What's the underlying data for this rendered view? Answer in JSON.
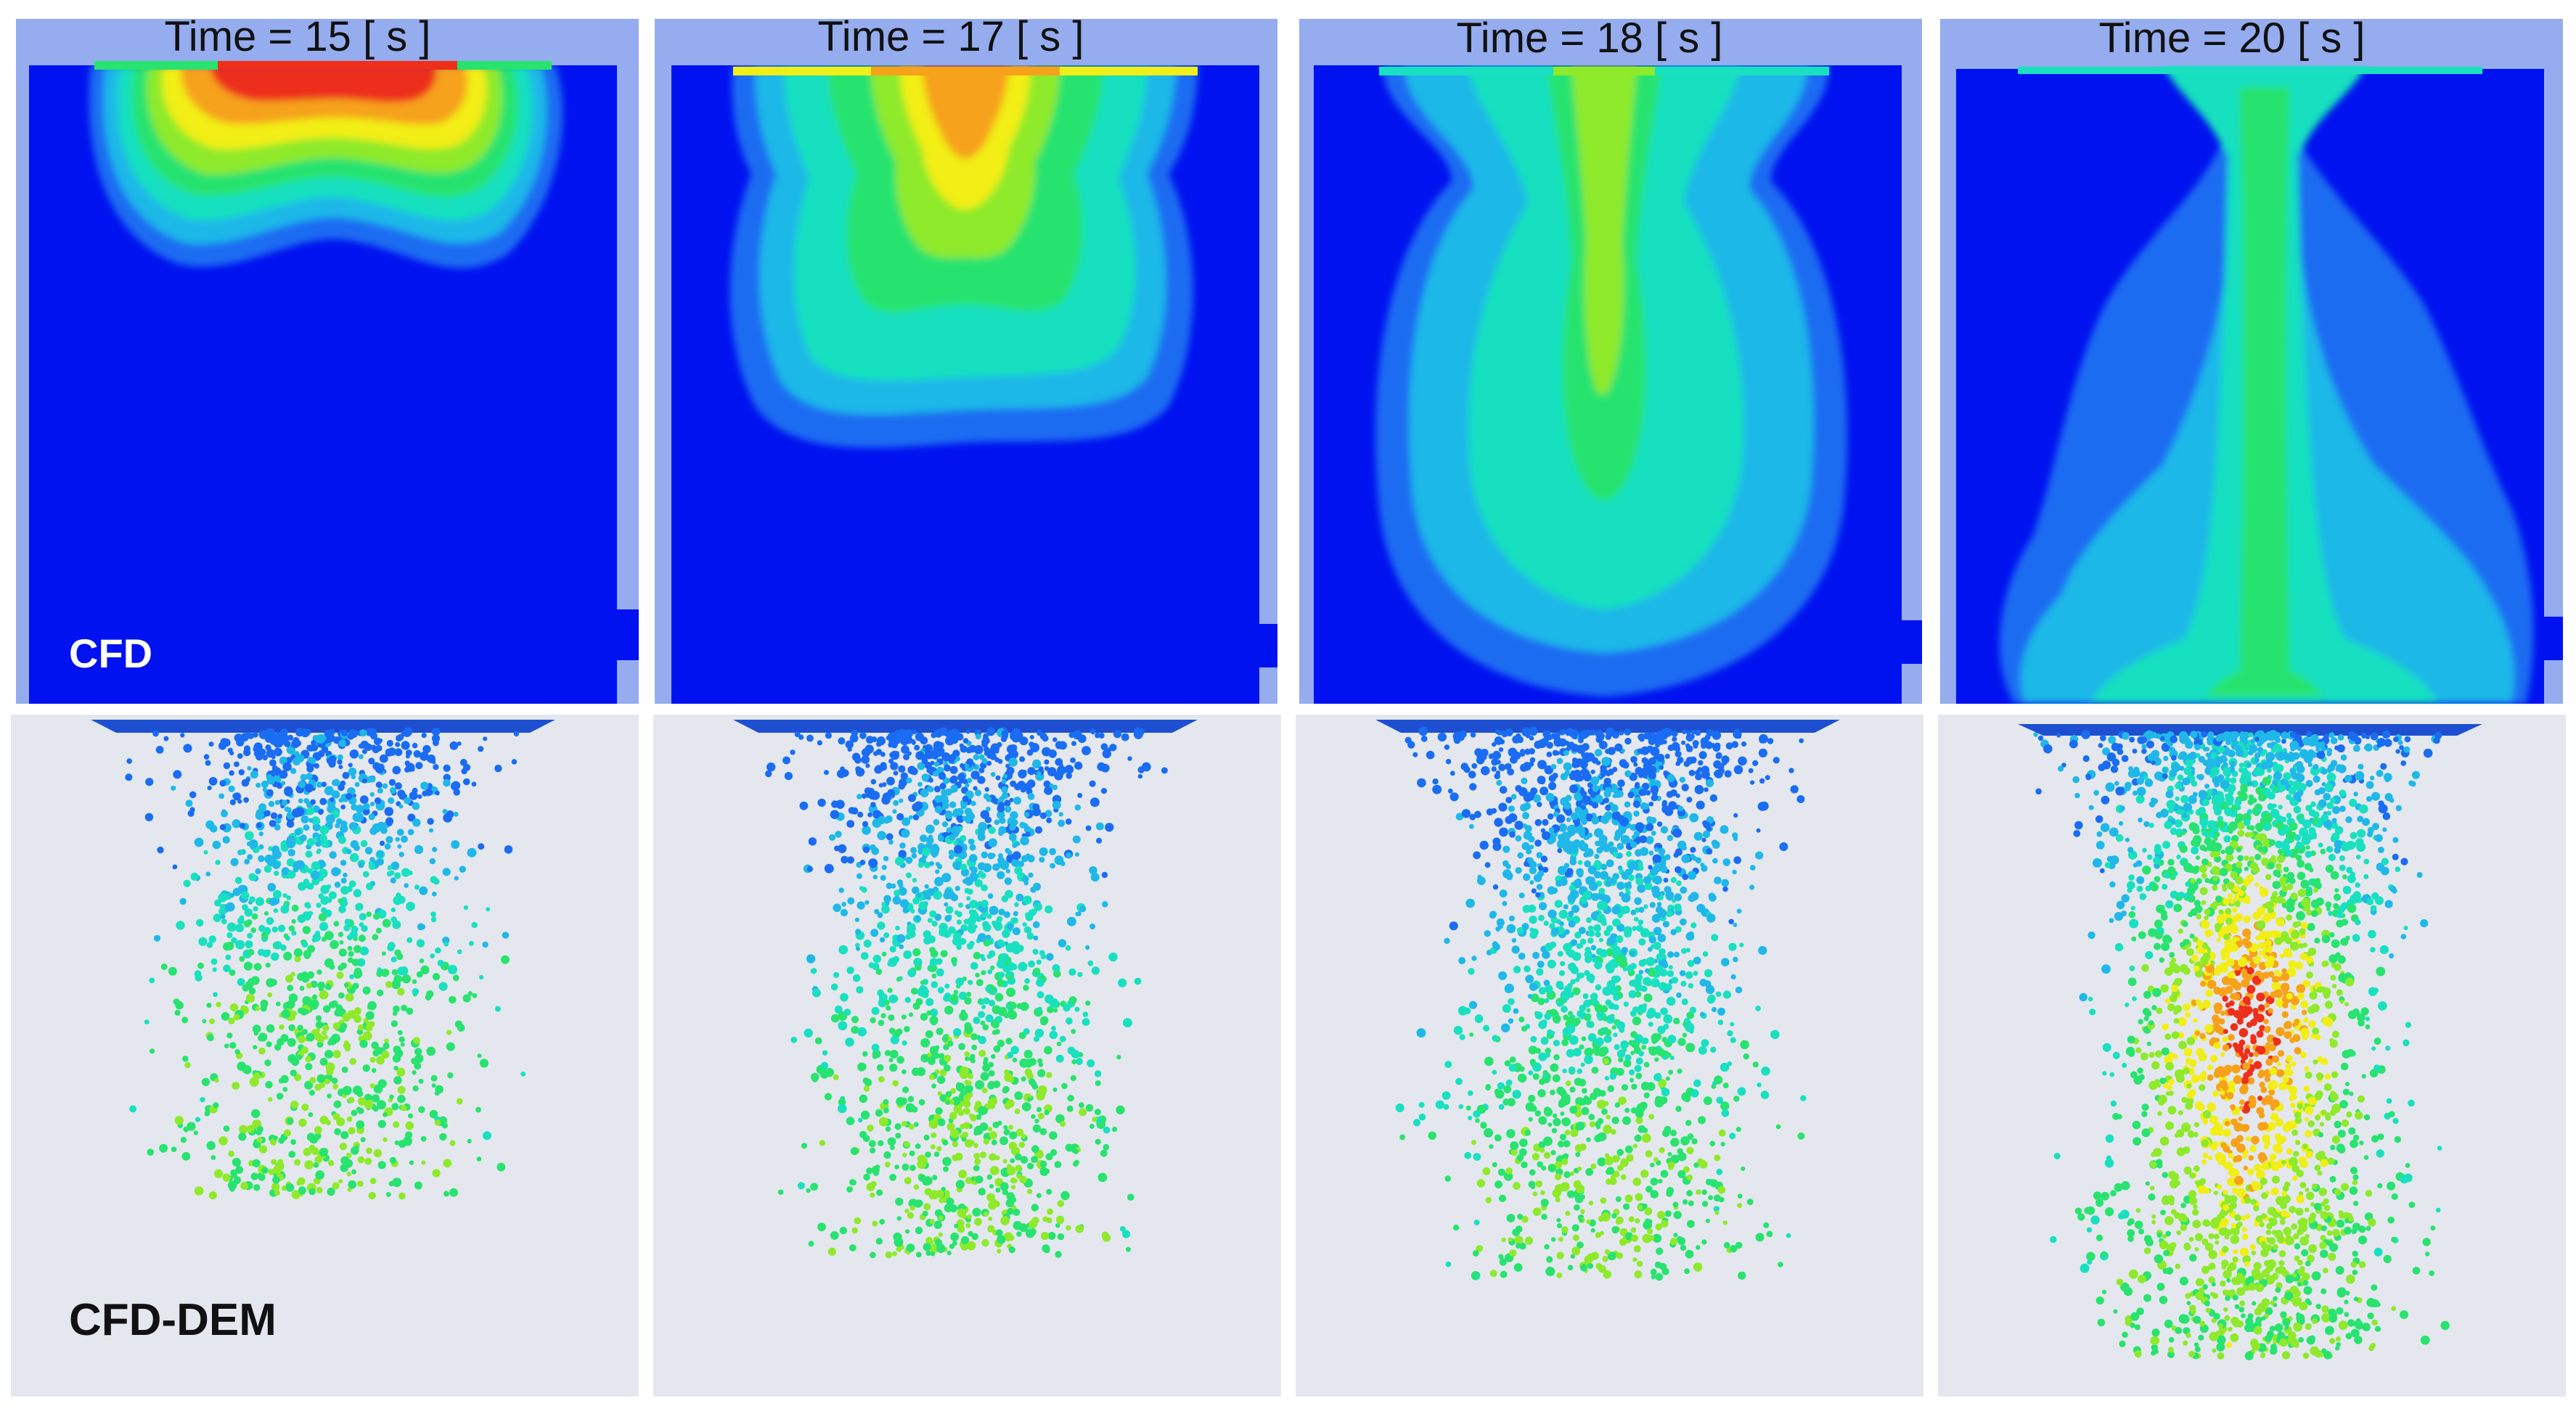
{
  "rows": [
    {
      "label": "CFD"
    },
    {
      "label": "CFD-DEM"
    }
  ],
  "panels": [
    {
      "time_label": "Time  = 15 [ s ]",
      "time_s": 15
    },
    {
      "time_label": "Time  = 17 [ s ]",
      "time_s": 17
    },
    {
      "time_label": "Time  = 18 [ s ]",
      "time_s": 18
    },
    {
      "time_label": "Time  = 20 [ s ]",
      "time_s": 20
    }
  ],
  "colors": {
    "cfd_background": "#0012ef",
    "cfd_frame": "#95acef",
    "dem_background": "#e4e8ee",
    "scale": [
      "#0012ef",
      "#1a6cf2",
      "#1fb8e8",
      "#19e0c0",
      "#28e36f",
      "#8eea2a",
      "#f2ee17",
      "#f6a21a",
      "#ed2f1c"
    ]
  }
}
